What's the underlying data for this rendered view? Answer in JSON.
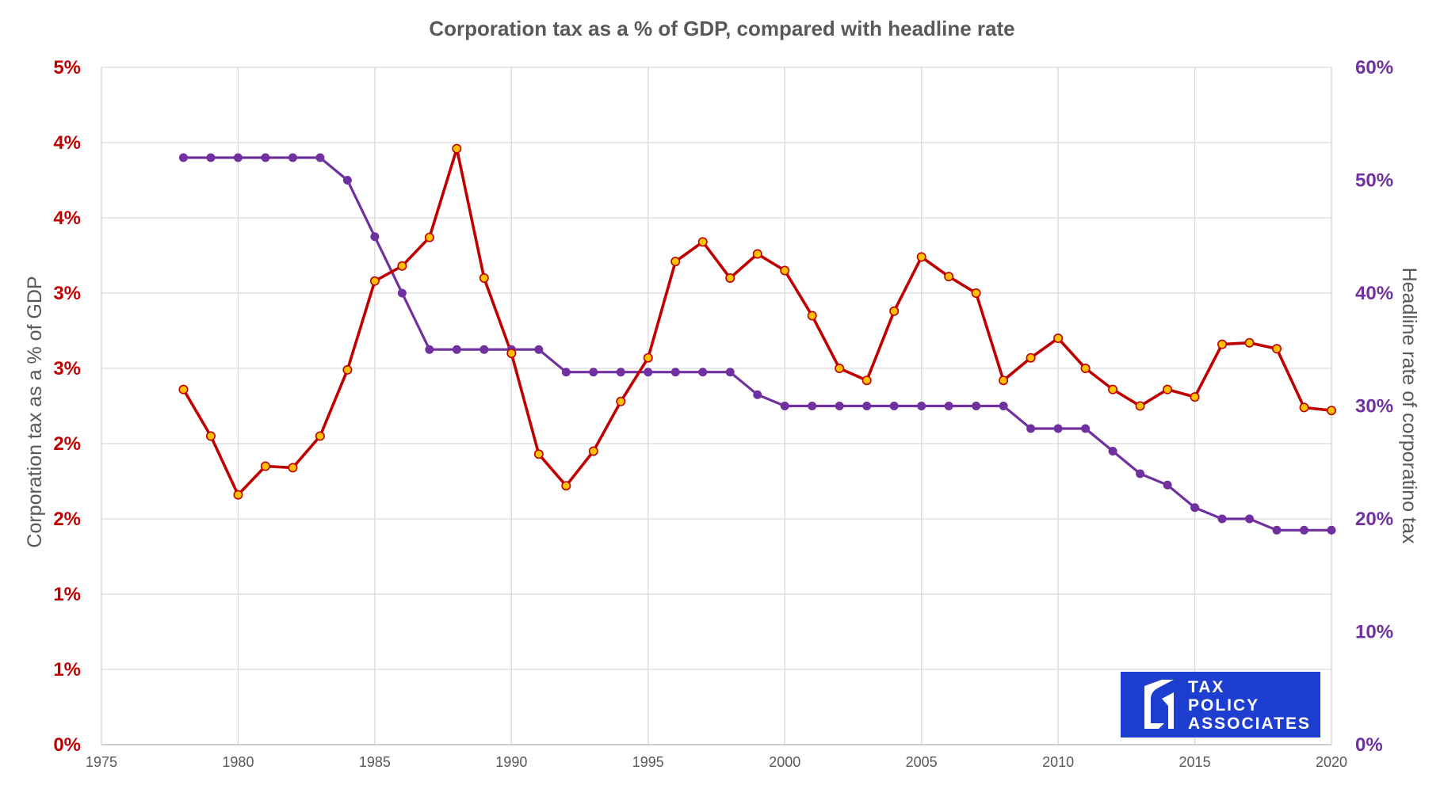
{
  "chart_data": {
    "type": "line",
    "title": "Corporation tax as a % of GDP, compared with headline rate",
    "ylabel_left": "Corporation tax as a % of GDP",
    "ylabel_right": "Headline rate of corporatino tax",
    "x_ticks": [
      "1975",
      "1980",
      "1985",
      "1990",
      "1995",
      "2000",
      "2005",
      "2010",
      "2015",
      "2020"
    ],
    "xlim": [
      1975,
      2020
    ],
    "y_left_ticks": [
      "0%",
      "1%",
      "1%",
      "2%",
      "2%",
      "3%",
      "3%",
      "4%",
      "4%",
      "5%"
    ],
    "ylim_left": [
      0,
      4.5
    ],
    "y_right_ticks": [
      "0%",
      "10%",
      "20%",
      "30%",
      "40%",
      "50%",
      "60%"
    ],
    "ylim_right": [
      0,
      60
    ],
    "grid": true,
    "legend": "none",
    "x": [
      1978,
      1979,
      1980,
      1981,
      1982,
      1983,
      1984,
      1985,
      1986,
      1987,
      1988,
      1989,
      1990,
      1991,
      1992,
      1993,
      1994,
      1995,
      1996,
      1997,
      1998,
      1999,
      2000,
      2001,
      2002,
      2003,
      2004,
      2005,
      2006,
      2007,
      2008,
      2009,
      2010,
      2011,
      2012,
      2013,
      2014,
      2015,
      2016,
      2017,
      2018,
      2019,
      2020
    ],
    "series": [
      {
        "axis": "left",
        "color": "#C00000",
        "marker_color": "#FFC000",
        "values": [
          2.36,
          2.05,
          1.66,
          1.85,
          1.84,
          2.05,
          2.49,
          3.08,
          3.18,
          3.37,
          3.96,
          3.1,
          2.6,
          1.93,
          1.72,
          1.95,
          2.28,
          2.57,
          3.21,
          3.34,
          3.1,
          3.26,
          3.15,
          2.85,
          2.5,
          2.42,
          2.88,
          3.24,
          3.11,
          3.0,
          2.42,
          2.57,
          2.7,
          2.5,
          2.36,
          2.25,
          2.36,
          2.31,
          2.66,
          2.67,
          2.63,
          2.24,
          2.22
        ]
      },
      {
        "axis": "right",
        "color": "#7030A0",
        "marker_color": "#7030A0",
        "values": [
          52,
          52,
          52,
          52,
          52,
          52,
          50,
          45,
          40,
          35,
          35,
          35,
          35,
          35,
          33,
          33,
          33,
          33,
          33,
          33,
          33,
          31,
          30,
          30,
          30,
          30,
          30,
          30,
          30,
          30,
          30,
          28,
          28,
          28,
          26,
          24,
          23,
          21,
          20,
          20,
          19,
          19,
          19
        ]
      }
    ]
  },
  "colors": {
    "left_axis_text": "#C00000",
    "right_axis_text": "#7030A0",
    "grid": "#D9D9D9",
    "logo_bg": "#1D3ECF"
  },
  "logo": {
    "line1": "TAX",
    "line2": "POLICY",
    "line3": "ASSOCIATES"
  }
}
